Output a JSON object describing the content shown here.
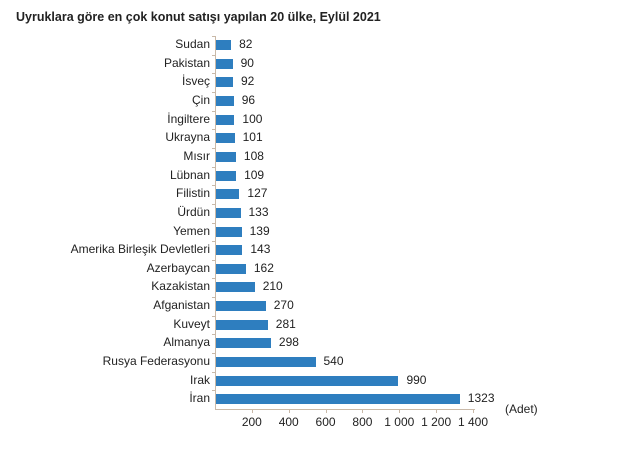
{
  "chart_data": {
    "type": "bar",
    "orientation": "horizontal",
    "title": "Uyruklara göre en çok konut satışı yapılan 20 ülke, Eylül 2021",
    "xlabel": "(Adet)",
    "ylabel": "",
    "xlim": [
      0,
      1400
    ],
    "xticks": [
      "200",
      "400",
      "600",
      "800",
      "1 000",
      "1 200",
      "1 400"
    ],
    "grid": false,
    "legend": null,
    "bar_color": "#2e7ebf",
    "categories": [
      "Sudan",
      "Pakistan",
      "İsveç",
      "Çin",
      "İngiltere",
      "Ukrayna",
      "Mısır",
      "Lübnan",
      "Filistin",
      "Ürdün",
      "Yemen",
      "Amerika Birleşik Devletleri",
      "Azerbaycan",
      "Kazakistan",
      "Afganistan",
      "Kuveyt",
      "Almanya",
      "Rusya Federasyonu",
      "Irak",
      "İran"
    ],
    "values": [
      82,
      90,
      92,
      96,
      100,
      101,
      108,
      109,
      127,
      133,
      139,
      143,
      162,
      210,
      270,
      281,
      298,
      540,
      990,
      1323
    ],
    "value_labels": [
      "82",
      "90",
      "92",
      "96",
      "100",
      "101",
      "108",
      "109",
      "127",
      "133",
      "139",
      "143",
      "162",
      "210",
      "270",
      "281",
      "298",
      "540",
      "990",
      "1323"
    ]
  }
}
